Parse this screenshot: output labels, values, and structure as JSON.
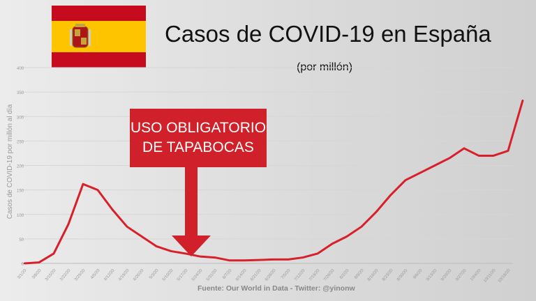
{
  "title": "Casos de COVID-19 en España",
  "subtitle": "(por millón)",
  "source": "Fuente: Our World in Data - Twitter: @yinonw",
  "annotation": "USO OBLIGATORIO DE TAPABOCAS",
  "colors": {
    "line": "#d8202a",
    "annotation_bg": "#d0202a",
    "flag_red": "#c60b1e",
    "flag_yellow": "#ffc400"
  },
  "chart_data": {
    "type": "line",
    "title": "Casos de COVID-19 en España",
    "ylabel": "Casos de COVID-19 por millón al día",
    "ylim": [
      0,
      400
    ],
    "yticks": [
      0,
      50,
      100,
      150,
      200,
      250,
      300,
      350,
      400
    ],
    "grid": true,
    "x_tick_labels": [
      "3/1/20",
      "3/8/20",
      "3/15/20",
      "3/22/20",
      "3/29/20",
      "4/5/20",
      "4/12/20",
      "4/19/20",
      "4/26/20",
      "5/3/20",
      "5/10/20",
      "5/17/20",
      "5/24/20",
      "5/31/20",
      "6/7/20",
      "6/14/20",
      "6/21/20",
      "6/28/20",
      "7/5/20",
      "7/12/20",
      "7/19/20",
      "7/26/20",
      "8/2/20",
      "8/9/20",
      "8/16/20",
      "8/23/20",
      "8/30/20",
      "9/6/20",
      "9/13/20",
      "9/20/20",
      "9/27/20",
      "10/4/20",
      "10/11/20",
      "10/18/20"
    ],
    "x": [
      "3/1/20",
      "3/8/20",
      "3/15/20",
      "3/22/20",
      "3/29/20",
      "4/5/20",
      "4/12/20",
      "4/19/20",
      "4/26/20",
      "5/3/20",
      "5/10/20",
      "5/17/20",
      "5/24/20",
      "5/31/20",
      "6/7/20",
      "6/14/20",
      "6/21/20",
      "6/28/20",
      "7/5/20",
      "7/12/20",
      "7/19/20",
      "7/26/20",
      "8/2/20",
      "8/9/20",
      "8/16/20",
      "8/23/20",
      "8/30/20",
      "9/6/20",
      "9/13/20",
      "9/20/20",
      "9/27/20",
      "10/4/20",
      "10/11/20",
      "10/18/20",
      "10/25/20"
    ],
    "values": [
      0,
      2,
      20,
      80,
      162,
      150,
      110,
      75,
      55,
      35,
      25,
      20,
      14,
      12,
      6,
      6,
      7,
      8,
      8,
      12,
      20,
      40,
      55,
      75,
      105,
      140,
      170,
      185,
      200,
      215,
      235,
      220,
      220,
      230,
      333
    ],
    "annotation_date": "5/17/20"
  }
}
